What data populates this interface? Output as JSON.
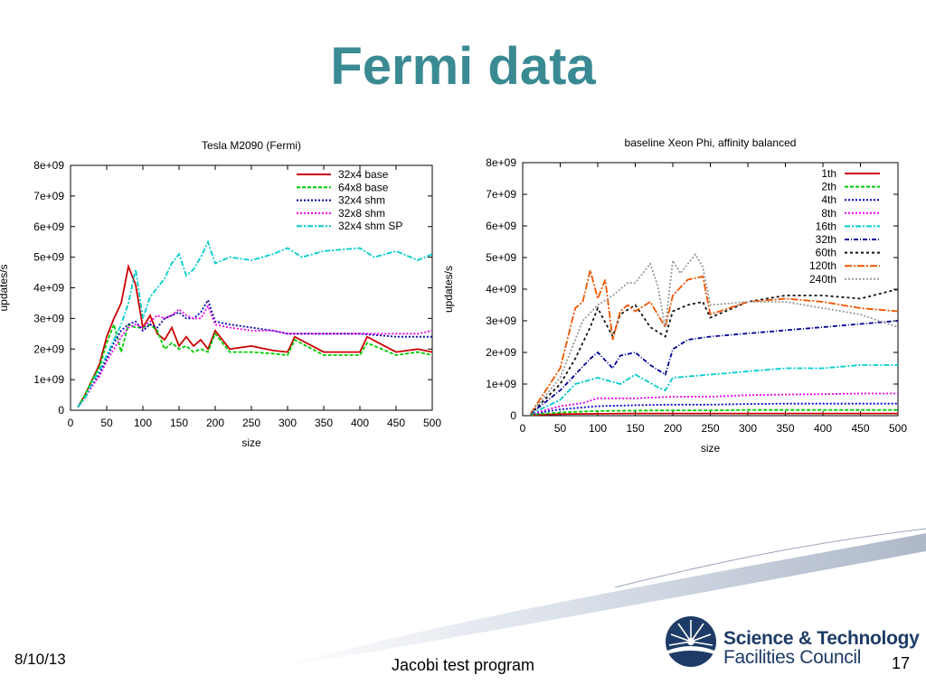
{
  "slide": {
    "title": "Fermi data",
    "date": "8/10/13",
    "footer": "Jacobi test program",
    "page": "17",
    "logo_line1": "Science & Technology",
    "logo_line2": "Facilities Council"
  },
  "chart_data": [
    {
      "type": "line",
      "title": "Tesla M2090 (Fermi)",
      "xlabel": "size",
      "ylabel": "updates/s",
      "xlim": [
        0,
        500
      ],
      "ylim": [
        0,
        8000000000
      ],
      "xticks": [
        "0",
        "50",
        "100",
        "150",
        "200",
        "250",
        "300",
        "350",
        "400",
        "450",
        "500"
      ],
      "yticks": [
        "0",
        "1e+09",
        "2e+09",
        "3e+09",
        "4e+09",
        "5e+09",
        "6e+09",
        "7e+09",
        "8e+09"
      ],
      "legend": "top-right",
      "series": [
        {
          "name": "32x4 base",
          "color": "#cc0000",
          "dash": "",
          "x": [
            10,
            20,
            30,
            40,
            50,
            60,
            70,
            80,
            90,
            100,
            110,
            120,
            130,
            140,
            150,
            160,
            170,
            180,
            190,
            200,
            220,
            250,
            280,
            300,
            310,
            350,
            400,
            410,
            450,
            480,
            500
          ],
          "y": [
            100000000.0,
            500000000.0,
            1000000000.0,
            1500000000.0,
            2400000000.0,
            3000000000.0,
            3500000000.0,
            4700000000.0,
            4100000000.0,
            2700000000.0,
            3100000000.0,
            2500000000.0,
            2300000000.0,
            2700000000.0,
            2100000000.0,
            2400000000.0,
            2100000000.0,
            2300000000.0,
            2000000000.0,
            2600000000.0,
            2000000000.0,
            2100000000.0,
            1950000000.0,
            1900000000.0,
            2400000000.0,
            1900000000.0,
            1900000000.0,
            2400000000.0,
            1900000000.0,
            2000000000.0,
            1900000000.0
          ]
        },
        {
          "name": "64x8 base",
          "color": "#00cc00",
          "dash": "4,2",
          "x": [
            10,
            20,
            30,
            40,
            50,
            60,
            70,
            80,
            90,
            100,
            110,
            120,
            130,
            140,
            150,
            160,
            170,
            180,
            190,
            200,
            220,
            250,
            280,
            300,
            310,
            350,
            400,
            410,
            450,
            480,
            500
          ],
          "y": [
            100000000.0,
            500000000.0,
            1000000000.0,
            1400000000.0,
            2200000000.0,
            2800000000.0,
            1900000000.0,
            2800000000.0,
            2700000000.0,
            2700000000.0,
            2800000000.0,
            2600000000.0,
            2000000000.0,
            2200000000.0,
            2000000000.0,
            2100000000.0,
            1900000000.0,
            2000000000.0,
            1900000000.0,
            2500000000.0,
            1900000000.0,
            1900000000.0,
            1850000000.0,
            1800000000.0,
            2300000000.0,
            1800000000.0,
            1800000000.0,
            2200000000.0,
            1800000000.0,
            1900000000.0,
            1800000000.0
          ]
        },
        {
          "name": "32x4 shm",
          "color": "#0000aa",
          "dash": "2,2",
          "x": [
            10,
            20,
            30,
            40,
            50,
            60,
            70,
            80,
            90,
            100,
            110,
            120,
            130,
            140,
            150,
            160,
            170,
            180,
            190,
            200,
            220,
            250,
            280,
            300,
            350,
            400,
            450,
            480,
            500
          ],
          "y": [
            100000000.0,
            400000000.0,
            800000000.0,
            1200000000.0,
            1700000000.0,
            2200000000.0,
            2600000000.0,
            2800000000.0,
            2900000000.0,
            2600000000.0,
            2800000000.0,
            2700000000.0,
            3000000000.0,
            3100000000.0,
            3200000000.0,
            3000000000.0,
            3000000000.0,
            3200000000.0,
            3600000000.0,
            2900000000.0,
            2800000000.0,
            2700000000.0,
            2600000000.0,
            2500000000.0,
            2500000000.0,
            2500000000.0,
            2400000000.0,
            2400000000.0,
            2400000000.0
          ]
        },
        {
          "name": "32x8 shm",
          "color": "#ee00ee",
          "dash": "2,2",
          "x": [
            10,
            20,
            30,
            40,
            50,
            60,
            70,
            80,
            90,
            100,
            110,
            120,
            130,
            140,
            150,
            160,
            170,
            180,
            190,
            200,
            220,
            250,
            280,
            300,
            350,
            400,
            450,
            480,
            500
          ],
          "y": [
            100000000.0,
            400000000.0,
            800000000.0,
            1100000000.0,
            1600000000.0,
            2000000000.0,
            2400000000.0,
            2700000000.0,
            2800000000.0,
            2700000000.0,
            2900000000.0,
            3100000000.0,
            3000000000.0,
            3100000000.0,
            3300000000.0,
            3100000000.0,
            3000000000.0,
            3000000000.0,
            3400000000.0,
            2800000000.0,
            2700000000.0,
            2600000000.0,
            2600000000.0,
            2500000000.0,
            2500000000.0,
            2500000000.0,
            2500000000.0,
            2500000000.0,
            2600000000.0
          ]
        },
        {
          "name": "32x4 shm SP",
          "color": "#00cccc",
          "dash": "6,2,2,2",
          "x": [
            10,
            20,
            30,
            40,
            50,
            60,
            70,
            80,
            90,
            100,
            110,
            120,
            130,
            140,
            150,
            160,
            170,
            180,
            190,
            200,
            220,
            250,
            280,
            300,
            320,
            350,
            400,
            420,
            450,
            480,
            500
          ],
          "y": [
            100000000.0,
            400000000.0,
            900000000.0,
            1300000000.0,
            1800000000.0,
            2300000000.0,
            2800000000.0,
            3500000000.0,
            4600000000.0,
            3000000000.0,
            3700000000.0,
            4000000000.0,
            4300000000.0,
            4800000000.0,
            5100000000.0,
            4400000000.0,
            4600000000.0,
            5000000000.0,
            5500000000.0,
            4800000000.0,
            5000000000.0,
            4900000000.0,
            5100000000.0,
            5300000000.0,
            5000000000.0,
            5200000000.0,
            5300000000.0,
            5000000000.0,
            5200000000.0,
            4900000000.0,
            5100000000.0
          ]
        }
      ]
    },
    {
      "type": "line",
      "title": "baseline Xeon Phi, affinity balanced",
      "xlabel": "size",
      "ylabel": "updates/s",
      "xlim": [
        0,
        500
      ],
      "ylim": [
        0,
        8000000000
      ],
      "xticks": [
        "0",
        "50",
        "100",
        "150",
        "200",
        "250",
        "300",
        "350",
        "400",
        "450",
        "500"
      ],
      "yticks": [
        "0",
        "1e+09",
        "2e+09",
        "3e+09",
        "4e+09",
        "5e+09",
        "6e+09",
        "7e+09",
        "8e+09"
      ],
      "legend": "top-right",
      "series": [
        {
          "name": "1th",
          "color": "#cc0000",
          "dash": "",
          "x": [
            10,
            50,
            100,
            150,
            200,
            250,
            300,
            350,
            400,
            450,
            500
          ],
          "y": [
            20000000.0,
            50000000.0,
            60000000.0,
            70000000.0,
            70000000.0,
            70000000.0,
            70000000.0,
            70000000.0,
            70000000.0,
            70000000.0,
            70000000.0
          ]
        },
        {
          "name": "2th",
          "color": "#00cc00",
          "dash": "4,2",
          "x": [
            10,
            50,
            100,
            150,
            200,
            250,
            300,
            350,
            400,
            450,
            500
          ],
          "y": [
            30000000.0,
            100000000.0,
            150000000.0,
            160000000.0,
            170000000.0,
            170000000.0,
            180000000.0,
            180000000.0,
            180000000.0,
            180000000.0,
            180000000.0
          ]
        },
        {
          "name": "4th",
          "color": "#0000cc",
          "dash": "2,2",
          "x": [
            10,
            50,
            100,
            150,
            200,
            250,
            300,
            350,
            400,
            450,
            500
          ],
          "y": [
            50000000.0,
            200000000.0,
            300000000.0,
            330000000.0,
            350000000.0,
            350000000.0,
            370000000.0,
            380000000.0,
            380000000.0,
            380000000.0,
            380000000.0
          ]
        },
        {
          "name": "8th",
          "color": "#ee00ee",
          "dash": "2,2",
          "x": [
            10,
            50,
            80,
            100,
            150,
            200,
            250,
            300,
            350,
            400,
            450,
            500
          ],
          "y": [
            50000000.0,
            300000000.0,
            400000000.0,
            550000000.0,
            550000000.0,
            600000000.0,
            600000000.0,
            650000000.0,
            670000000.0,
            680000000.0,
            700000000.0,
            700000000.0
          ]
        },
        {
          "name": "16th",
          "color": "#00cccc",
          "dash": "6,2,2,2",
          "x": [
            10,
            50,
            70,
            100,
            130,
            150,
            180,
            190,
            200,
            250,
            300,
            350,
            400,
            450,
            500
          ],
          "y": [
            50000000.0,
            500000000.0,
            1000000000.0,
            1200000000.0,
            1000000000.0,
            1300000000.0,
            900000000.0,
            800000000.0,
            1200000000.0,
            1300000000.0,
            1400000000.0,
            1500000000.0,
            1500000000.0,
            1600000000.0,
            1600000000.0
          ]
        },
        {
          "name": "32th",
          "color": "#000099",
          "dash": "5,2,1,2",
          "x": [
            10,
            50,
            70,
            90,
            100,
            120,
            130,
            150,
            170,
            190,
            200,
            220,
            250,
            300,
            350,
            400,
            450,
            500
          ],
          "y": [
            50000000.0,
            800000000.0,
            1300000000.0,
            1800000000.0,
            2000000000.0,
            1500000000.0,
            1900000000.0,
            2000000000.0,
            1600000000.0,
            1300000000.0,
            2100000000.0,
            2400000000.0,
            2500000000.0,
            2600000000.0,
            2700000000.0,
            2800000000.0,
            2900000000.0,
            3000000000.0
          ]
        },
        {
          "name": "60th",
          "color": "#111111",
          "dash": "3,3",
          "x": [
            10,
            50,
            70,
            90,
            100,
            120,
            130,
            150,
            170,
            190,
            200,
            220,
            240,
            250,
            300,
            350,
            400,
            450,
            500
          ],
          "y": [
            50000000.0,
            1000000000.0,
            1800000000.0,
            2800000000.0,
            3400000000.0,
            2500000000.0,
            3200000000.0,
            3500000000.0,
            2800000000.0,
            2500000000.0,
            3300000000.0,
            3500000000.0,
            3600000000.0,
            3100000000.0,
            3600000000.0,
            3800000000.0,
            3800000000.0,
            3700000000.0,
            4000000000.0
          ]
        },
        {
          "name": "120th",
          "color": "#ee5500",
          "dash": "8,2,2,2",
          "x": [
            10,
            50,
            70,
            80,
            90,
            100,
            110,
            120,
            130,
            140,
            150,
            170,
            190,
            200,
            220,
            240,
            250,
            300,
            350,
            400,
            450,
            500
          ],
          "y": [
            50000000.0,
            1500000000.0,
            3400000000.0,
            3600000000.0,
            4600000000.0,
            3700000000.0,
            4300000000.0,
            2400000000.0,
            3300000000.0,
            3500000000.0,
            3300000000.0,
            3600000000.0,
            2800000000.0,
            3800000000.0,
            4300000000.0,
            4400000000.0,
            3200000000.0,
            3600000000.0,
            3700000000.0,
            3600000000.0,
            3400000000.0,
            3300000000.0
          ]
        },
        {
          "name": "240th",
          "color": "#999999",
          "dash": "2,2",
          "x": [
            10,
            50,
            80,
            100,
            120,
            140,
            150,
            170,
            180,
            190,
            200,
            210,
            230,
            240,
            250,
            300,
            350,
            400,
            450,
            500
          ],
          "y": [
            50000000.0,
            1200000000.0,
            3000000000.0,
            3500000000.0,
            3800000000.0,
            4200000000.0,
            4200000000.0,
            4800000000.0,
            4100000000.0,
            2800000000.0,
            4900000000.0,
            4500000000.0,
            5100000000.0,
            4700000000.0,
            3500000000.0,
            3600000000.0,
            3600000000.0,
            3400000000.0,
            3200000000.0,
            2800000000.0
          ]
        }
      ]
    }
  ]
}
